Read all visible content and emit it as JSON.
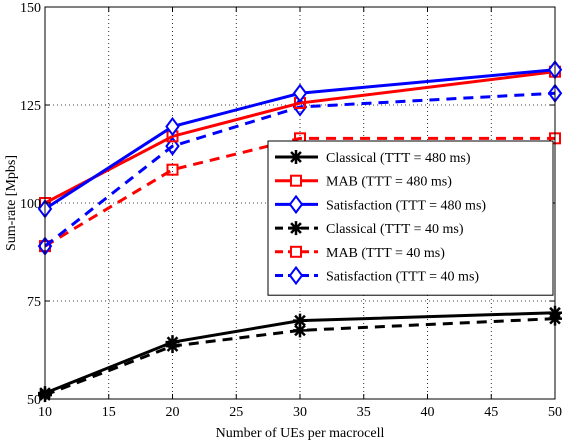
{
  "chart_data": {
    "type": "line",
    "xlabel": "Number of UEs per macrocell",
    "ylabel": "Sum-rate [Mpbs]",
    "xlim": [
      10,
      50
    ],
    "ylim": [
      50,
      150
    ],
    "x_ticks": [
      10,
      15,
      20,
      25,
      30,
      35,
      40,
      45,
      50
    ],
    "y_ticks": [
      50,
      75,
      100,
      125,
      150
    ],
    "x_tick_labels": [
      "10",
      "15",
      "20",
      "25",
      "30",
      "35",
      "40",
      "45",
      "50"
    ],
    "y_tick_labels": [
      "50",
      "75",
      "100",
      "125",
      "150"
    ],
    "grid": true,
    "grid_style": "dotted",
    "legend_placement": "center-right",
    "x": [
      10,
      20,
      30,
      50
    ],
    "series": [
      {
        "name": "Classical (TTT = 480 ms)",
        "values": [
          51.5,
          64.5,
          70,
          72
        ],
        "color": "#000000",
        "line": "solid",
        "marker": "asterisk"
      },
      {
        "name": "MAB (TTT = 480 ms)",
        "values": [
          100,
          117,
          125.5,
          133.5
        ],
        "color": "#ff0000",
        "line": "solid",
        "marker": "square"
      },
      {
        "name": "Satisfaction (TTT = 480 ms)",
        "values": [
          98.5,
          119.5,
          128,
          134
        ],
        "color": "#0000ff",
        "line": "solid",
        "marker": "diamond"
      },
      {
        "name": "Classical (TTT = 40 ms)",
        "values": [
          51,
          63.5,
          67.5,
          70.5
        ],
        "color": "#000000",
        "line": "dashed",
        "marker": "asterisk"
      },
      {
        "name": "MAB (TTT = 40 ms)",
        "values": [
          89,
          108.5,
          116.5,
          116.5
        ],
        "color": "#ff0000",
        "line": "dashed",
        "marker": "square"
      },
      {
        "name": "Satisfaction (TTT = 40 ms)",
        "values": [
          89,
          114.5,
          124.5,
          128
        ],
        "color": "#0000ff",
        "line": "dashed",
        "marker": "diamond"
      }
    ]
  }
}
